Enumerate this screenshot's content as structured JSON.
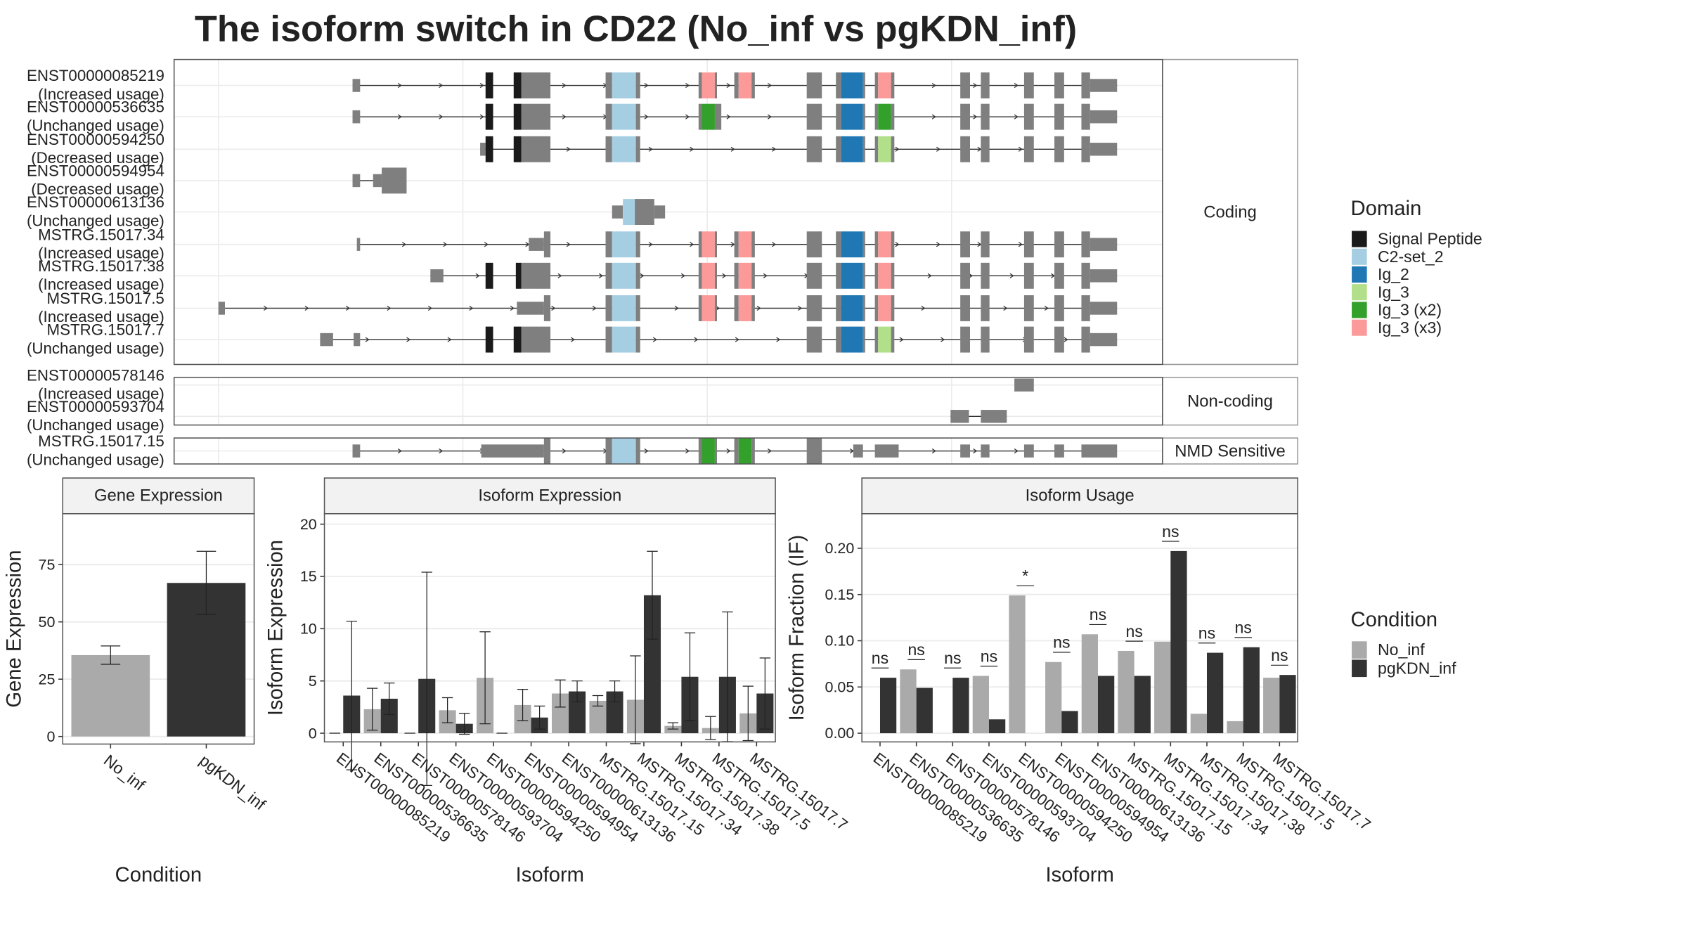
{
  "title": "The isoform switch in CD22 (No_inf vs pgKDN_inf)",
  "isoform_structure": {
    "groups": [
      "Coding",
      "Non-coding",
      "NMD Sensitive"
    ],
    "domain_legend_title": "Domain",
    "domains": [
      {
        "name": "Signal Peptide",
        "color": "#1a1a1a"
      },
      {
        "name": "C2-set_2",
        "color": "#a6cee3"
      },
      {
        "name": "Ig_2",
        "color": "#1f78b4"
      },
      {
        "name": "Ig_3",
        "color": "#b2df8a"
      },
      {
        "name": "Ig_3 (x2)",
        "color": "#33a02c"
      },
      {
        "name": "Ig_3 (x3)",
        "color": "#fb9a99"
      }
    ],
    "transcripts": [
      {
        "name": "ENST00000085219",
        "status": "(Increased usage)",
        "group": 0
      },
      {
        "name": "ENST00000536635",
        "status": "(Unchanged usage)",
        "group": 0
      },
      {
        "name": "ENST00000594250",
        "status": "(Decreased usage)",
        "group": 0
      },
      {
        "name": "ENST00000594954",
        "status": "(Decreased usage)",
        "group": 0
      },
      {
        "name": "ENST00000613136",
        "status": "(Unchanged usage)",
        "group": 0
      },
      {
        "name": "MSTRG.15017.34",
        "status": "(Increased usage)",
        "group": 0
      },
      {
        "name": "MSTRG.15017.38",
        "status": "(Increased usage)",
        "group": 0
      },
      {
        "name": "MSTRG.15017.5",
        "status": "(Increased usage)",
        "group": 0
      },
      {
        "name": "MSTRG.15017.7",
        "status": "(Unchanged usage)",
        "group": 0
      },
      {
        "name": "ENST00000578146",
        "status": "(Increased usage)",
        "group": 1
      },
      {
        "name": "ENST00000593704",
        "status": "(Unchanged usage)",
        "group": 1
      },
      {
        "name": "MSTRG.15017.15",
        "status": "(Unchanged usage)",
        "group": 2
      }
    ]
  },
  "chart_data": [
    {
      "type": "bar",
      "title": "Gene Expression",
      "x_label": "Condition",
      "y_label": "Gene Expression",
      "categories": [
        "No_inf",
        "pgKDN_inf"
      ],
      "values": [
        35.5,
        67
      ],
      "errors": [
        4,
        13.8
      ],
      "colors": [
        "#aaaaaa",
        "#333333"
      ],
      "ylim": [
        -3.3,
        97.2
      ],
      "yticks": [
        0,
        25,
        50,
        75
      ],
      "grid": true
    },
    {
      "type": "bar",
      "title": "Isoform Expression",
      "x_label": "Isoform",
      "y_label": "Isoform Expression",
      "categories": [
        "ENST00000085219",
        "ENST00000536635",
        "ENST00000578146",
        "ENST00000593704",
        "ENST00000594250",
        "ENST00000594954",
        "ENST00000613136",
        "MSTRG.15017.15",
        "MSTRG.15017.34",
        "MSTRG.15017.38",
        "MSTRG.15017.5",
        "MSTRG.15017.7"
      ],
      "series": [
        {
          "name": "No_inf",
          "color": "#aaaaaa",
          "values": [
            0,
            2.3,
            0,
            2.2,
            5.3,
            2.7,
            3.8,
            3.1,
            3.2,
            0.7,
            0.5,
            1.9
          ],
          "errors": [
            0,
            2,
            0,
            1.2,
            4.4,
            1.5,
            1.3,
            0.5,
            4.2,
            0.3,
            1.1,
            2.6
          ]
        },
        {
          "name": "pgKDN_inf",
          "color": "#333333",
          "values": [
            3.6,
            3.3,
            5.2,
            0.9,
            0,
            1.5,
            4.0,
            4.0,
            13.2,
            5.4,
            5.4,
            3.8
          ],
          "errors": [
            7.1,
            1.5,
            10.2,
            1.0,
            0,
            1.1,
            1.0,
            1.0,
            4.2,
            4.2,
            6.2,
            3.4
          ]
        }
      ],
      "ylim": [
        -0.83,
        21.0
      ],
      "yticks": [
        0,
        5,
        10,
        15,
        20
      ],
      "grid": true
    },
    {
      "type": "bar",
      "title": "Isoform Usage",
      "x_label": "Isoform",
      "y_label": "Isoform Fraction (IF)",
      "categories": [
        "ENST00000085219",
        "ENST00000536635",
        "ENST00000578146",
        "ENST00000593704",
        "ENST00000594250",
        "ENST00000594954",
        "ENST00000613136",
        "MSTRG.15017.15",
        "MSTRG.15017.34",
        "MSTRG.15017.38",
        "MSTRG.15017.5",
        "MSTRG.15017.7"
      ],
      "series": [
        {
          "name": "No_inf",
          "color": "#aaaaaa",
          "values": [
            0,
            0.069,
            0,
            0.062,
            0.149,
            0.077,
            0.107,
            0.089,
            0.099,
            0.021,
            0.013,
            0.06
          ]
        },
        {
          "name": "pgKDN_inf",
          "color": "#333333",
          "values": [
            0.06,
            0.049,
            0.06,
            0.015,
            0,
            0.024,
            0.062,
            0.062,
            0.197,
            0.087,
            0.093,
            0.063
          ]
        }
      ],
      "significance": [
        "ns",
        "ns",
        "ns",
        "ns",
        "*",
        "ns",
        "ns",
        "ns",
        "ns",
        "ns",
        "ns",
        "ns"
      ],
      "legend_title": "Condition",
      "ylim": [
        -0.0094,
        0.2374
      ],
      "yticks": [
        {
          "value": 0,
          "label": "0.00"
        },
        0.05,
        {
          "value": 0.1,
          "label": "0.10"
        },
        0.15,
        {
          "value": 0.2,
          "label": "0.20"
        }
      ],
      "grid": true
    }
  ]
}
